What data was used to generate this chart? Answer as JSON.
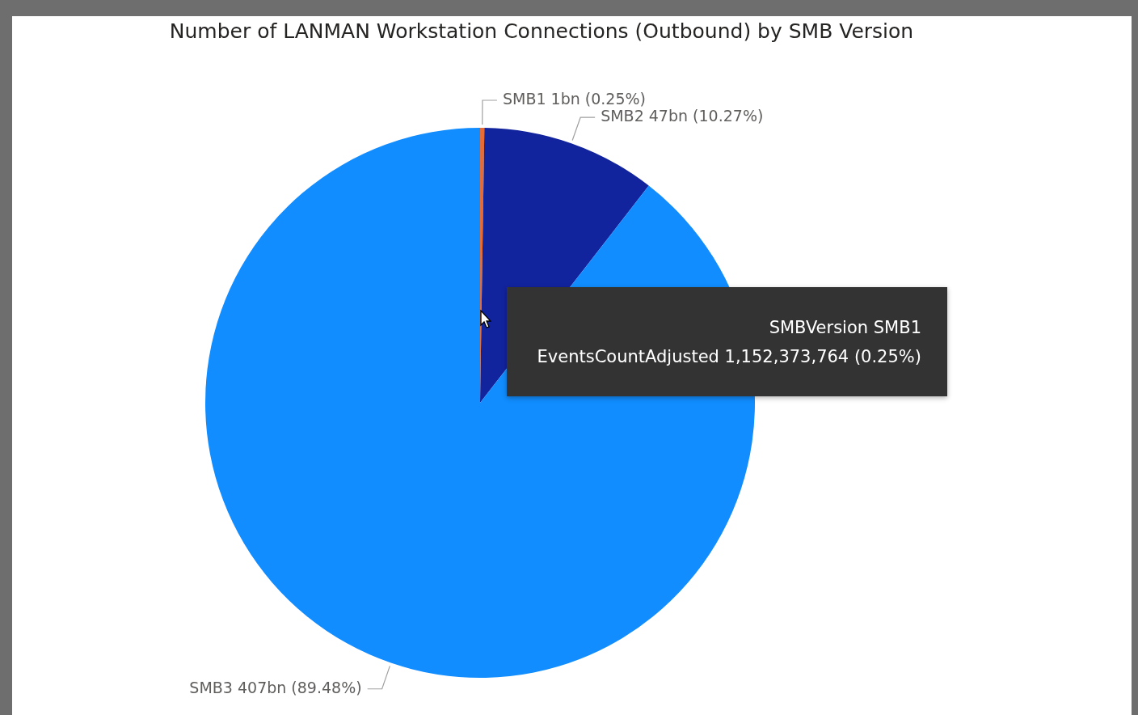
{
  "chart_data": {
    "type": "pie",
    "title": "Number of LANMAN Workstation Connections (Outbound) by SMB Version",
    "categories": [
      "SMB1",
      "SMB2",
      "SMB3"
    ],
    "values": [
      0.25,
      10.27,
      89.48
    ],
    "value_labels": [
      "1bn (0.25%)",
      "47bn (10.27%)",
      "407bn (89.48%)"
    ],
    "colors": [
      "#e66c37",
      "#12239e",
      "#118dff"
    ],
    "legend": false,
    "annotations": [
      "SMBVersion SMB1",
      "EventsCountAdjusted 1,152,373,764 (0.25%)"
    ]
  }
}
